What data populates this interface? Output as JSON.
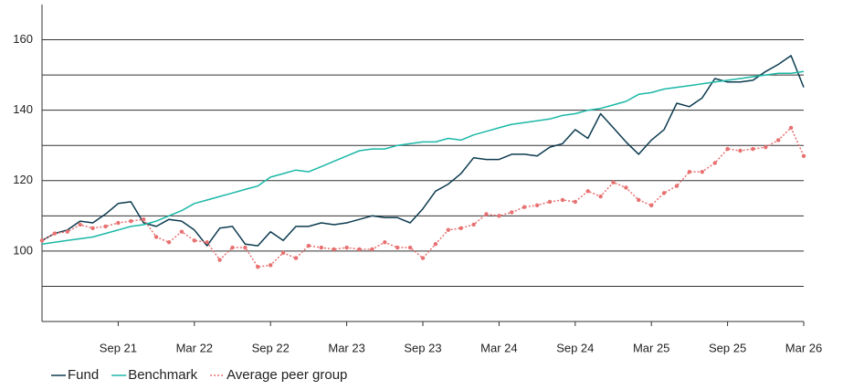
{
  "chart_data": {
    "type": "line",
    "categories": [
      null,
      null,
      null,
      null,
      null,
      null,
      "Sep 21",
      null,
      null,
      null,
      null,
      null,
      "Mar 22",
      null,
      null,
      null,
      null,
      null,
      "Sep 22",
      null,
      null,
      null,
      null,
      null,
      "Mar 23",
      null,
      null,
      null,
      null,
      null,
      "Sep 23",
      null,
      null,
      null,
      null,
      null,
      "Mar 24",
      null,
      null,
      null,
      null,
      null,
      "Sep 24",
      null,
      null,
      null,
      null,
      null,
      "Mar 25",
      null,
      null,
      null,
      null,
      null,
      "Sep 25",
      null,
      null,
      null,
      null,
      null,
      "Mar 26"
    ],
    "ylim": [
      80,
      170
    ],
    "yticks": [
      100,
      120,
      140,
      160
    ],
    "minor_gridlines": [
      90,
      110,
      130,
      150
    ],
    "grid": true,
    "series": [
      {
        "name": "Fund",
        "color": "#0d3b4f",
        "style": "solid",
        "values": [
          103,
          105,
          106,
          108.5,
          108,
          110.5,
          113.5,
          114,
          108,
          107,
          109,
          108.5,
          106,
          101.5,
          106.5,
          107,
          102,
          101.5,
          105.5,
          103,
          107,
          107,
          108,
          107.5,
          108,
          109,
          110,
          109.5,
          109.5,
          108,
          112,
          117,
          119,
          122,
          126.5,
          126,
          126,
          127.5,
          127.5,
          127,
          129.5,
          130.5,
          134.5,
          132,
          139,
          135,
          131,
          127.5,
          131.5,
          134.5,
          142,
          141,
          143.5,
          149,
          148,
          148,
          148.5,
          151,
          153,
          155.5,
          146.5
        ]
      },
      {
        "name": "Benchmark",
        "color": "#1bb8a6",
        "style": "solid",
        "values": [
          102,
          102.5,
          103,
          103.5,
          104,
          105,
          106,
          107,
          107.5,
          108.5,
          110,
          111.5,
          113.5,
          114.5,
          115.5,
          116.5,
          117.5,
          118.5,
          121,
          122,
          123,
          122.5,
          124,
          125.5,
          127,
          128.5,
          129,
          129,
          130,
          130.5,
          131,
          131,
          132,
          131.5,
          133,
          134,
          135,
          136,
          136.5,
          137,
          137.5,
          138.5,
          139,
          140,
          140.5,
          141.5,
          142.5,
          144.5,
          145,
          146,
          146.5,
          147,
          147.5,
          148,
          148.5,
          149,
          149.5,
          150,
          150.5,
          150.5,
          151
        ]
      },
      {
        "name": "Average peer group",
        "color": "#e87070",
        "style": "dotted",
        "values": [
          103,
          105,
          105.5,
          107.5,
          106.5,
          107,
          108,
          108.5,
          109,
          104,
          102.5,
          105.5,
          103,
          102.5,
          97.5,
          101,
          101,
          95.5,
          96,
          99.5,
          98,
          101.5,
          101,
          100.5,
          101,
          100.5,
          100.5,
          102.5,
          101,
          101,
          98,
          102,
          106,
          106.5,
          107.5,
          110.5,
          110,
          111,
          112.5,
          113,
          114,
          114.5,
          114,
          117,
          115.5,
          119.5,
          118,
          114.5,
          113,
          116.5,
          118.5,
          122.5,
          122.5,
          125,
          129,
          128.5,
          129,
          129.5,
          131.5,
          135,
          127
        ]
      }
    ]
  }
}
